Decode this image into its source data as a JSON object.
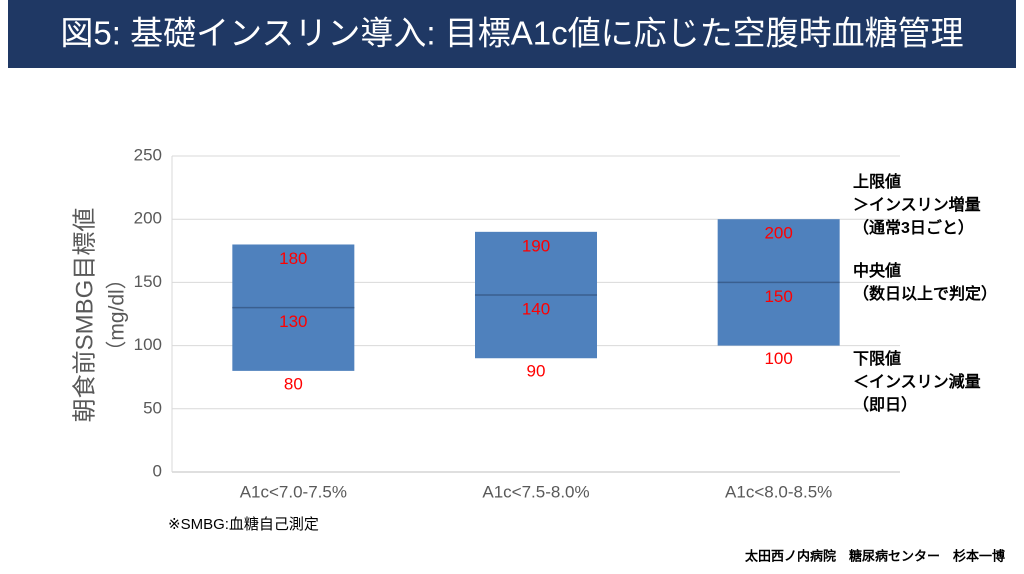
{
  "chart_data": {
    "type": "floating-bar",
    "title": "図5: 基礎インスリン導入: 目標A1c値に応じた空腹時血糖管理",
    "y_label": [
      "朝食前SMBG目標値",
      "（mg/dl）"
    ],
    "categories": [
      "A1c<7.0-7.5%",
      "A1c<7.5-8.0%",
      "A1c<8.0-8.5%"
    ],
    "low": [
      80,
      90,
      100
    ],
    "mid": [
      130,
      140,
      150
    ],
    "high": [
      180,
      190,
      200
    ],
    "color": "#4f81bd",
    "mid_color": "#3a5f8f",
    "label_color": "#ff0000",
    "ylim": [
      0,
      250
    ],
    "yticks": [
      0,
      50,
      100,
      150,
      200,
      250
    ],
    "grid": true,
    "annotations": [
      [
        "上限値",
        "＞インスリン増量",
        "（通常3日ごと）"
      ],
      [
        "中央値",
        "（数日以上で判定）"
      ],
      [
        "下限値",
        "＜インスリン減量",
        "（即日）"
      ]
    ],
    "footnote": "※SMBG:血糖自己測定",
    "credit": "太田西ノ内病院　糖尿病センター　杉本一博"
  }
}
